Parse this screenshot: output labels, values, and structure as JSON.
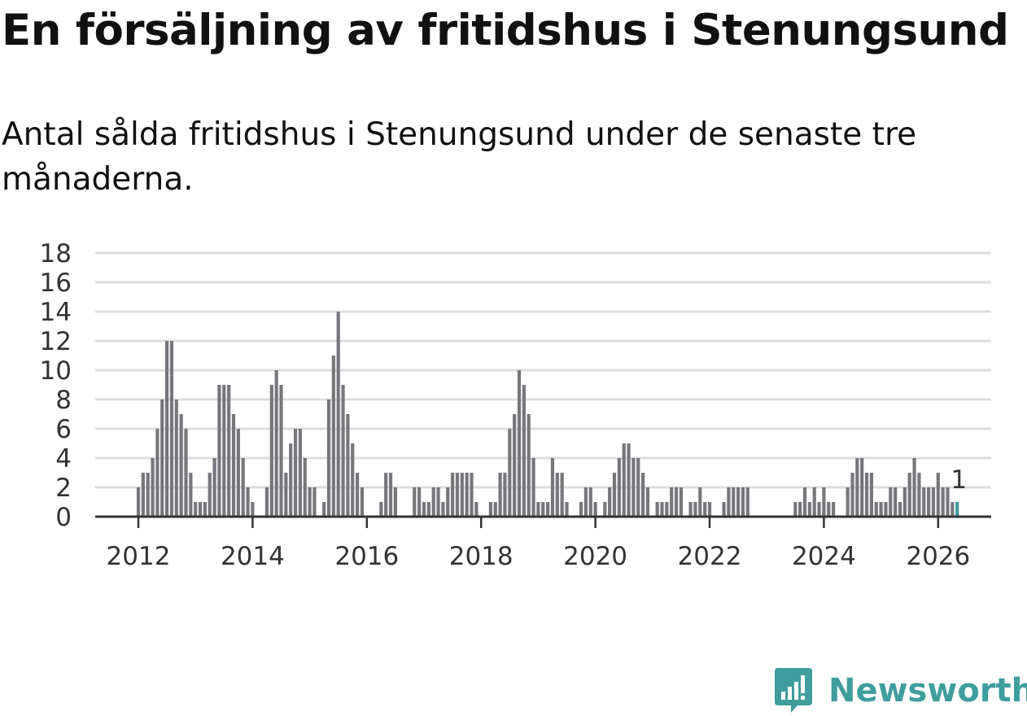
{
  "title": "En försäljning av fritidshus i Stenungsund",
  "subtitle": "Antal sålda fritidshus i Stenungsund under de senaste tre månaderna.",
  "logo": {
    "text": "Newsworthy",
    "icon": "newsworthy-logo-icon"
  },
  "colors": {
    "bar": "#76767b",
    "highlight": "#3a9a98",
    "grid": "#dddddd",
    "axis": "#333333",
    "brand": "#3f9e9d"
  },
  "chart_data": {
    "type": "bar",
    "title": "En försäljning av fritidshus i Stenungsund",
    "xlabel": "",
    "ylabel": "",
    "ylim": [
      0,
      18
    ],
    "yticks": [
      0,
      2,
      4,
      6,
      8,
      10,
      12,
      14,
      16,
      18
    ],
    "xticks": [
      "2012",
      "2014",
      "2016",
      "2018",
      "2020",
      "2022",
      "2024",
      "2026"
    ],
    "start": "2011-01",
    "frequency": "monthly",
    "series": [
      {
        "name": "Antal sålda fritidshus",
        "values": [
          0,
          0,
          0,
          0,
          0,
          0,
          0,
          0,
          0,
          0,
          0,
          0,
          2,
          3,
          3,
          4,
          6,
          8,
          12,
          12,
          8,
          7,
          6,
          3,
          1,
          1,
          1,
          3,
          4,
          9,
          9,
          9,
          7,
          6,
          4,
          2,
          1,
          0,
          0,
          2,
          9,
          10,
          9,
          3,
          5,
          6,
          6,
          4,
          2,
          2,
          0,
          1,
          8,
          11,
          14,
          9,
          7,
          5,
          3,
          2,
          0,
          0,
          0,
          1,
          3,
          3,
          2,
          0,
          0,
          0,
          2,
          2,
          1,
          1,
          2,
          2,
          1,
          2,
          3,
          3,
          3,
          3,
          3,
          1,
          0,
          0,
          1,
          1,
          3,
          3,
          6,
          7,
          10,
          9,
          7,
          4,
          1,
          1,
          1,
          4,
          3,
          3,
          1,
          0,
          0,
          1,
          2,
          2,
          1,
          0,
          1,
          2,
          3,
          4,
          5,
          5,
          4,
          4,
          3,
          2,
          0,
          1,
          1,
          1,
          2,
          2,
          2,
          0,
          1,
          1,
          2,
          1,
          1,
          0,
          0,
          1,
          2,
          2,
          2,
          2,
          2,
          0,
          0,
          0,
          0,
          0,
          0,
          0,
          0,
          0,
          1,
          1,
          2,
          1,
          2,
          1,
          2,
          1,
          1,
          0,
          0,
          2,
          3,
          4,
          4,
          3,
          3,
          1,
          1,
          1,
          2,
          2,
          1,
          2,
          3,
          4,
          3,
          2,
          2,
          2,
          3,
          2,
          2,
          1,
          1
        ]
      }
    ],
    "highlight": {
      "label": "1",
      "value": 1
    }
  }
}
